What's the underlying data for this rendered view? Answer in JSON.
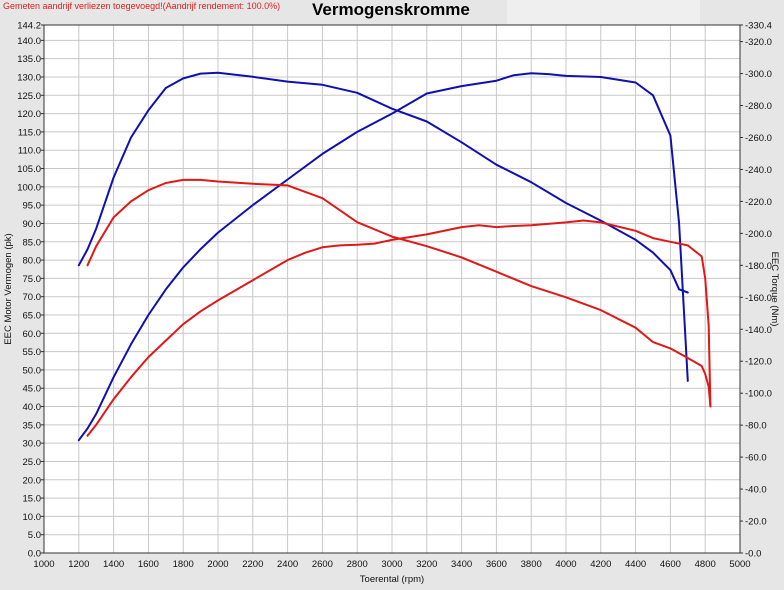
{
  "header": {
    "note": "Gemeten aandrijf verliezen toegevoegd!(Aandrijf rendement: 100.0%)",
    "title": "Vermogenskromme"
  },
  "chart_data": {
    "type": "line",
    "title": "Vermogenskromme",
    "xlabel": "Toerental (rpm)",
    "ylabel": "EEC Motor Vermogen (pk)",
    "y2label": "EEC Torque (Nm)",
    "xlim": [
      1000,
      5000
    ],
    "ylim": [
      0,
      144.2
    ],
    "y2lim": [
      0,
      330.4
    ],
    "x_ticks": [
      1000,
      1200,
      1400,
      1600,
      1800,
      2000,
      2200,
      2400,
      2600,
      2800,
      3000,
      3200,
      3400,
      3600,
      3800,
      4000,
      4200,
      4400,
      4600,
      4800,
      5000
    ],
    "y_ticks": [
      "0.0",
      "5.0",
      "10.0",
      "15.0",
      "20.0",
      "25.0",
      "30.0",
      "35.0",
      "40.0",
      "45.0",
      "50.0",
      "55.0",
      "60.0",
      "65.0",
      "70.0",
      "75.0",
      "80.0",
      "85.0",
      "90.0",
      "95.0",
      "100.0",
      "105.0",
      "110.0",
      "115.0",
      "120.0",
      "125.0",
      "130.0",
      "135.0",
      "140.0",
      "144.2"
    ],
    "y2_ticks": [
      "0.0",
      "20.0",
      "40.0",
      "60.0",
      "80.0",
      "100.0",
      "120.0",
      "140.0",
      "160.0",
      "180.0",
      "200.0",
      "220.0",
      "240.0",
      "260.0",
      "280.0",
      "300.0",
      "320.0",
      "330.4"
    ],
    "grid": true,
    "colors": {
      "blue": "#1010b0",
      "red": "#e01818"
    },
    "series": [
      {
        "color": "blue",
        "axis": "left",
        "x": [
          1200,
          1250,
          1300,
          1400,
          1500,
          1600,
          1700,
          1800,
          1900,
          2000,
          2200,
          2400,
          2600,
          2800,
          3000,
          3200,
          3400,
          3600,
          3700,
          3800,
          3900,
          4000,
          4200,
          4400,
          4500,
          4600,
          4650,
          4700
        ],
        "y": [
          30.8,
          34,
          38,
          48,
          57,
          65,
          72,
          78,
          83,
          87.5,
          95,
          102,
          109,
          115,
          120,
          125.5,
          127.5,
          129,
          130.5,
          131,
          130.8,
          130.3,
          130,
          128.5,
          125,
          114,
          90,
          47
        ]
      },
      {
        "color": "blue",
        "axis": "right",
        "x": [
          1200,
          1250,
          1300,
          1400,
          1500,
          1600,
          1700,
          1800,
          1900,
          2000,
          2200,
          2400,
          2600,
          2800,
          3000,
          3200,
          3400,
          3600,
          3800,
          4000,
          4200,
          4400,
          4500,
          4600,
          4650,
          4700
        ],
        "y": [
          180,
          190,
          203,
          235,
          260,
          277,
          291,
          297,
          300,
          300.5,
          298,
          295,
          293,
          288,
          278,
          270,
          257,
          243,
          232,
          219,
          208,
          196,
          188,
          177,
          165,
          163
        ]
      },
      {
        "color": "red",
        "axis": "left",
        "x": [
          1250,
          1300,
          1400,
          1500,
          1600,
          1700,
          1800,
          1900,
          2000,
          2200,
          2400,
          2500,
          2600,
          2700,
          2800,
          2900,
          3000,
          3200,
          3400,
          3500,
          3600,
          3700,
          3800,
          4000,
          4100,
          4200,
          4400,
          4500,
          4600,
          4700,
          4780,
          4800,
          4820,
          4830
        ],
        "y": [
          32,
          35,
          42,
          48,
          53.5,
          58,
          62.5,
          66,
          69,
          74.5,
          80,
          82,
          83.5,
          84,
          84.2,
          84.5,
          85.5,
          87,
          89,
          89.5,
          89,
          89.3,
          89.5,
          90.3,
          90.8,
          90.3,
          88,
          86,
          85,
          84,
          81,
          75,
          62,
          40
        ]
      },
      {
        "color": "red",
        "axis": "right",
        "x": [
          1250,
          1300,
          1400,
          1500,
          1600,
          1700,
          1800,
          1900,
          2000,
          2200,
          2400,
          2600,
          2800,
          3000,
          3200,
          3400,
          3600,
          3800,
          4000,
          4200,
          4400,
          4500,
          4600,
          4700,
          4780,
          4800,
          4820,
          4830
        ],
        "y": [
          180,
          192,
          210,
          220,
          227,
          231.5,
          233.5,
          233.5,
          232.5,
          231,
          230,
          222,
          207,
          198,
          192,
          185,
          176,
          167,
          160,
          152,
          141,
          132,
          128,
          122,
          117,
          112,
          104,
          92
        ]
      }
    ]
  }
}
